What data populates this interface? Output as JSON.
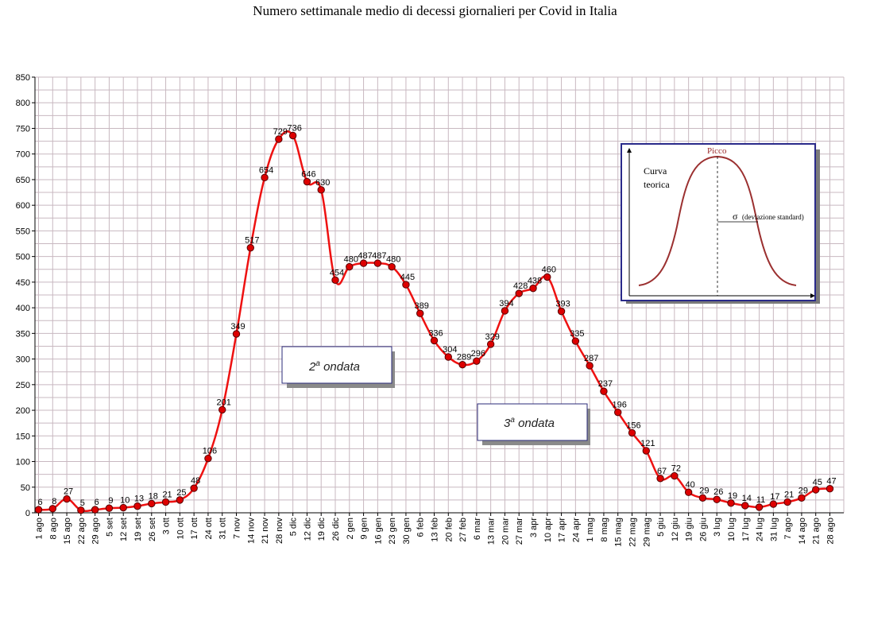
{
  "chart_data": {
    "type": "line",
    "title": "Numero settimanale medio di decessi giornalieri per Covid in Italia",
    "xlabel": "",
    "ylabel": "",
    "ylim": [
      0,
      850
    ],
    "yticks": [
      0,
      50,
      100,
      150,
      200,
      250,
      300,
      350,
      400,
      450,
      500,
      550,
      600,
      650,
      700,
      750,
      800,
      850
    ],
    "grid": true,
    "series_color": "#ee1111",
    "marker_color": "#dd0000",
    "categories": [
      "1 ago",
      "8 ago",
      "15 ago",
      "22 ago",
      "29 ago",
      "5 set",
      "12 set",
      "19 set",
      "26 set",
      "3 ott",
      "10 ott",
      "17 ott",
      "24 ott",
      "31 ott",
      "7 nov",
      "14 nov",
      "21 nov",
      "28 nov",
      "5 dic",
      "12 dic",
      "19 dic",
      "26 dic",
      "2 gen",
      "9 gen",
      "16 gen",
      "23 gen",
      "30 gen",
      "6 feb",
      "13 feb",
      "20 feb",
      "27 feb",
      "6 mar",
      "13 mar",
      "20 mar",
      "27 mar",
      "3 apr",
      "10 apr",
      "17 apr",
      "24 apr",
      "1 mag",
      "8 mag",
      "15 mag",
      "22 mag",
      "29 mag",
      "5 giu",
      "12 giu",
      "19 giu",
      "26 giu",
      "3 lug",
      "10 lug",
      "17 lug",
      "24 lug",
      "31 lug",
      "7 ago",
      "14 ago",
      "21 ago",
      "28 ago"
    ],
    "values": [
      6,
      8,
      27,
      5,
      6,
      9,
      10,
      13,
      18,
      21,
      25,
      48,
      106,
      201,
      349,
      517,
      654,
      729,
      736,
      646,
      630,
      454,
      480,
      487,
      487,
      480,
      445,
      389,
      336,
      304,
      289,
      296,
      329,
      394,
      428,
      438,
      460,
      393,
      335,
      287,
      237,
      196,
      156,
      121,
      67,
      72,
      40,
      29,
      26,
      19,
      14,
      11,
      17,
      21,
      29,
      45,
      47
    ],
    "annotations": [
      {
        "text_main": "2",
        "text_sup": "a",
        "text_rest": " ondata"
      },
      {
        "text_main": "3",
        "text_sup": "a",
        "text_rest": " ondata"
      }
    ],
    "inset": {
      "peak_label": "Picco",
      "curve_label_line1": "Curva",
      "curve_label_line2": "teorica",
      "sigma_symbol": "σ",
      "sigma_label": "(deviazione standard)",
      "curve_color": "#9b3030",
      "border_color": "#2a2a8a"
    }
  }
}
